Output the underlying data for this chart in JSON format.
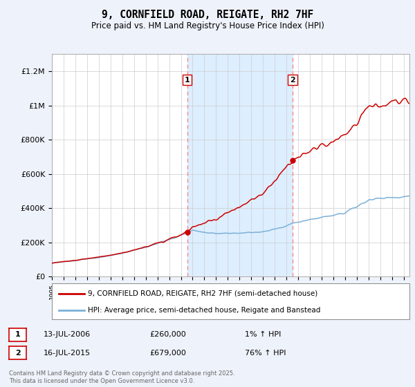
{
  "title": "9, CORNFIELD ROAD, REIGATE, RH2 7HF",
  "subtitle": "Price paid vs. HM Land Registry's House Price Index (HPI)",
  "ylim": [
    0,
    1300000
  ],
  "yticks": [
    0,
    200000,
    400000,
    600000,
    800000,
    1000000,
    1200000
  ],
  "ytick_labels": [
    "£0",
    "£200K",
    "£400K",
    "£600K",
    "£800K",
    "£1M",
    "£1.2M"
  ],
  "legend_entry1": "9, CORNFIELD ROAD, REIGATE, RH2 7HF (semi-detached house)",
  "legend_entry2": "HPI: Average price, semi-detached house, Reigate and Banstead",
  "sale1_date": "13-JUL-2006",
  "sale1_price": "£260,000",
  "sale1_hpi": "1% ↑ HPI",
  "sale2_date": "16-JUL-2015",
  "sale2_price": "£679,000",
  "sale2_hpi": "76% ↑ HPI",
  "footnote": "Contains HM Land Registry data © Crown copyright and database right 2025.\nThis data is licensed under the Open Government Licence v3.0.",
  "sale1_x": 2006.53,
  "sale1_y": 260000,
  "sale2_x": 2015.53,
  "sale2_y": 679000,
  "vline1_x": 2006.53,
  "vline2_x": 2015.53,
  "red_line_color": "#cc0000",
  "blue_line_color": "#7bb0d8",
  "vline_color": "#ff8888",
  "shade_color": "#ddeeff",
  "marker_color": "#cc0000",
  "background_color": "#eef2fa",
  "plot_bg_color": "#ffffff",
  "grid_color": "#cccccc",
  "xlim_left": 1995,
  "xlim_right": 2025.5
}
